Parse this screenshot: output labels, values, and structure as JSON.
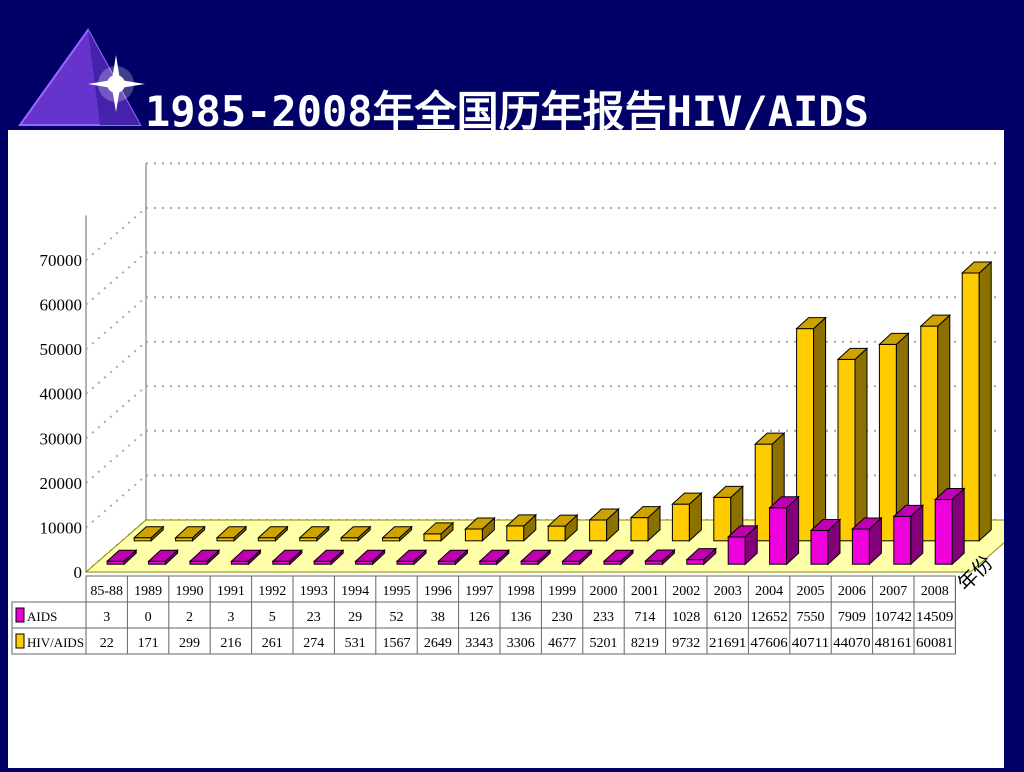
{
  "title": "1985-2008年全国历年报告HIV/AIDS",
  "colors": {
    "background": "#000066",
    "aids": "#ee00dd",
    "hiv_aids": "#ffcc00",
    "floor": "#ffffaa"
  },
  "chart_data": {
    "type": "bar",
    "categories": [
      "85-88",
      "1989",
      "1990",
      "1991",
      "1992",
      "1993",
      "1994",
      "1995",
      "1996",
      "1997",
      "1998",
      "1999",
      "2000",
      "2001",
      "2002",
      "2003",
      "2004",
      "2005",
      "2006",
      "2007",
      "2008"
    ],
    "series": [
      {
        "name": "AIDS",
        "color": "#ee00dd",
        "values": [
          3,
          0,
          2,
          3,
          5,
          23,
          29,
          52,
          38,
          126,
          136,
          230,
          233,
          714,
          1028,
          6120,
          12652,
          7550,
          7909,
          10742,
          14509
        ],
        "labels": [
          "3",
          "0",
          "2",
          "3",
          "5",
          "23",
          "29",
          "52",
          "38",
          "126",
          "136",
          "230",
          "233",
          "714",
          "1028",
          "6120",
          "12652",
          "7550",
          "7909",
          "10742",
          "14509"
        ]
      },
      {
        "name": "HIV/AIDS",
        "color": "#ffcc00",
        "values": [
          22,
          171,
          299,
          216,
          261,
          274,
          531,
          1567,
          2649,
          3343,
          3306,
          4677,
          5201,
          8219,
          9732,
          21691,
          47606,
          40711,
          44070,
          48161,
          60081
        ],
        "labels": [
          "22",
          "171",
          "299",
          "216",
          "261",
          "274",
          "531",
          "1567",
          "2649",
          "3343",
          "3306",
          "4677",
          "5201",
          "8219",
          "9732",
          "21691",
          "47606",
          "40711",
          "44070",
          "48161",
          "60081"
        ]
      }
    ],
    "yticks": [
      "0",
      "10000",
      "20000",
      "30000",
      "40000",
      "50000",
      "60000",
      "70000"
    ],
    "ylim": [
      0,
      70000
    ],
    "xlabel": "年份",
    "grid": true,
    "projection": "3d-depth"
  }
}
